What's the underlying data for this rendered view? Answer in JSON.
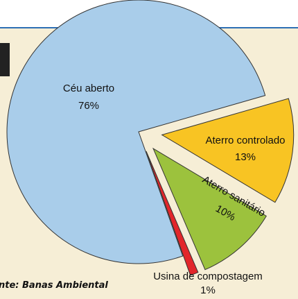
{
  "chart_data": {
    "type": "pie",
    "categories": [
      "Céu aberto",
      "Aterro controlado",
      "Aterro sanitário",
      "Usina de compostagem"
    ],
    "values": [
      76,
      13,
      10,
      1
    ],
    "value_labels": [
      "76%",
      "13%",
      "10%",
      "1%"
    ],
    "colors": [
      "#a9cdea",
      "#f8c423",
      "#9cc23d",
      "#e2262a"
    ],
    "source": "nte: Banas Ambiental"
  }
}
